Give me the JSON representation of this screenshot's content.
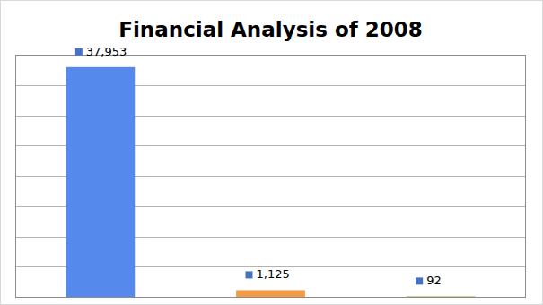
{
  "chart_data": {
    "type": "bar",
    "title": "Financial Analysis of 2008",
    "categories": [
      null,
      null,
      null
    ],
    "values": [
      37953,
      1125,
      92
    ],
    "value_labels": [
      "37,953",
      "1,125",
      "92"
    ],
    "colors": [
      "#5589eb",
      "#f79a45",
      "#9bbb59"
    ],
    "ylim": [
      0,
      40000
    ],
    "yticks": [
      0,
      5000,
      10000,
      15000,
      20000,
      25000,
      30000,
      35000,
      40000
    ],
    "grid": true,
    "data_labels": true,
    "tick_labels": false
  }
}
